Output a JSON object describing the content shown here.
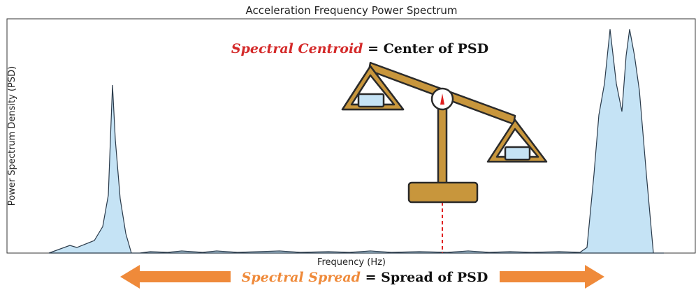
{
  "title": "Acceleration Frequency Power Spectrum",
  "y_axis_label": "Power Spectrum Density (PSD)",
  "x_axis_label": "Frequency (Hz)",
  "centroid": {
    "term": "Spectral Centroid",
    "definition": "= Center of PSD"
  },
  "spread": {
    "term": "Spectral Spread",
    "definition": "= Spread of PSD"
  }
}
